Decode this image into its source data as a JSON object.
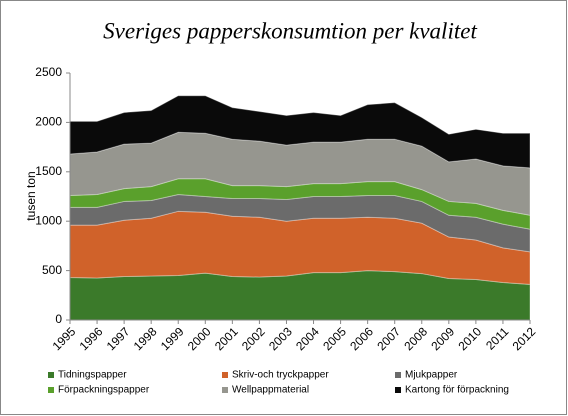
{
  "chart_data": {
    "type": "stacked_area",
    "title": "Sveriges papperskonsumtion per kvalitet",
    "y_label": "tusen ton",
    "categories": [
      "1995",
      "1996",
      "1997",
      "1998",
      "1999",
      "2000",
      "2001",
      "2002",
      "2003",
      "2004",
      "2005",
      "2006",
      "2007",
      "2008",
      "2009",
      "2010",
      "2011",
      "2012"
    ],
    "series": [
      {
        "name": "Tidningspapper",
        "color": "#3b7a2a",
        "values": [
          430,
          425,
          440,
          445,
          450,
          475,
          440,
          435,
          445,
          480,
          480,
          500,
          490,
          470,
          420,
          410,
          380,
          360
        ]
      },
      {
        "name": "Skriv-och tryckpapper",
        "color": "#d0622a",
        "values": [
          530,
          535,
          570,
          585,
          650,
          615,
          610,
          605,
          555,
          550,
          550,
          540,
          540,
          510,
          420,
          400,
          350,
          330
        ]
      },
      {
        "name": "Mjukpapper",
        "color": "#6b6b6b",
        "values": [
          180,
          180,
          190,
          180,
          170,
          160,
          180,
          190,
          220,
          220,
          220,
          220,
          230,
          220,
          220,
          230,
          240,
          230
        ]
      },
      {
        "name": "Förpackningspapper",
        "color": "#5aa02c",
        "values": [
          120,
          130,
          130,
          140,
          160,
          180,
          130,
          130,
          130,
          130,
          130,
          140,
          140,
          120,
          140,
          140,
          140,
          140
        ]
      },
      {
        "name": "Wellpappmaterial",
        "color": "#96968f",
        "values": [
          420,
          430,
          450,
          440,
          470,
          460,
          470,
          450,
          420,
          420,
          420,
          430,
          430,
          440,
          400,
          450,
          450,
          480
        ]
      },
      {
        "name": "Kartong för förpackning",
        "color": "#0a0a0a",
        "values": [
          330,
          310,
          320,
          330,
          370,
          380,
          320,
          300,
          300,
          300,
          270,
          350,
          370,
          290,
          280,
          300,
          330,
          350
        ]
      }
    ],
    "ylim": [
      0,
      2500
    ],
    "yticks": [
      0,
      500,
      1000,
      1500,
      2000,
      2500
    ]
  }
}
